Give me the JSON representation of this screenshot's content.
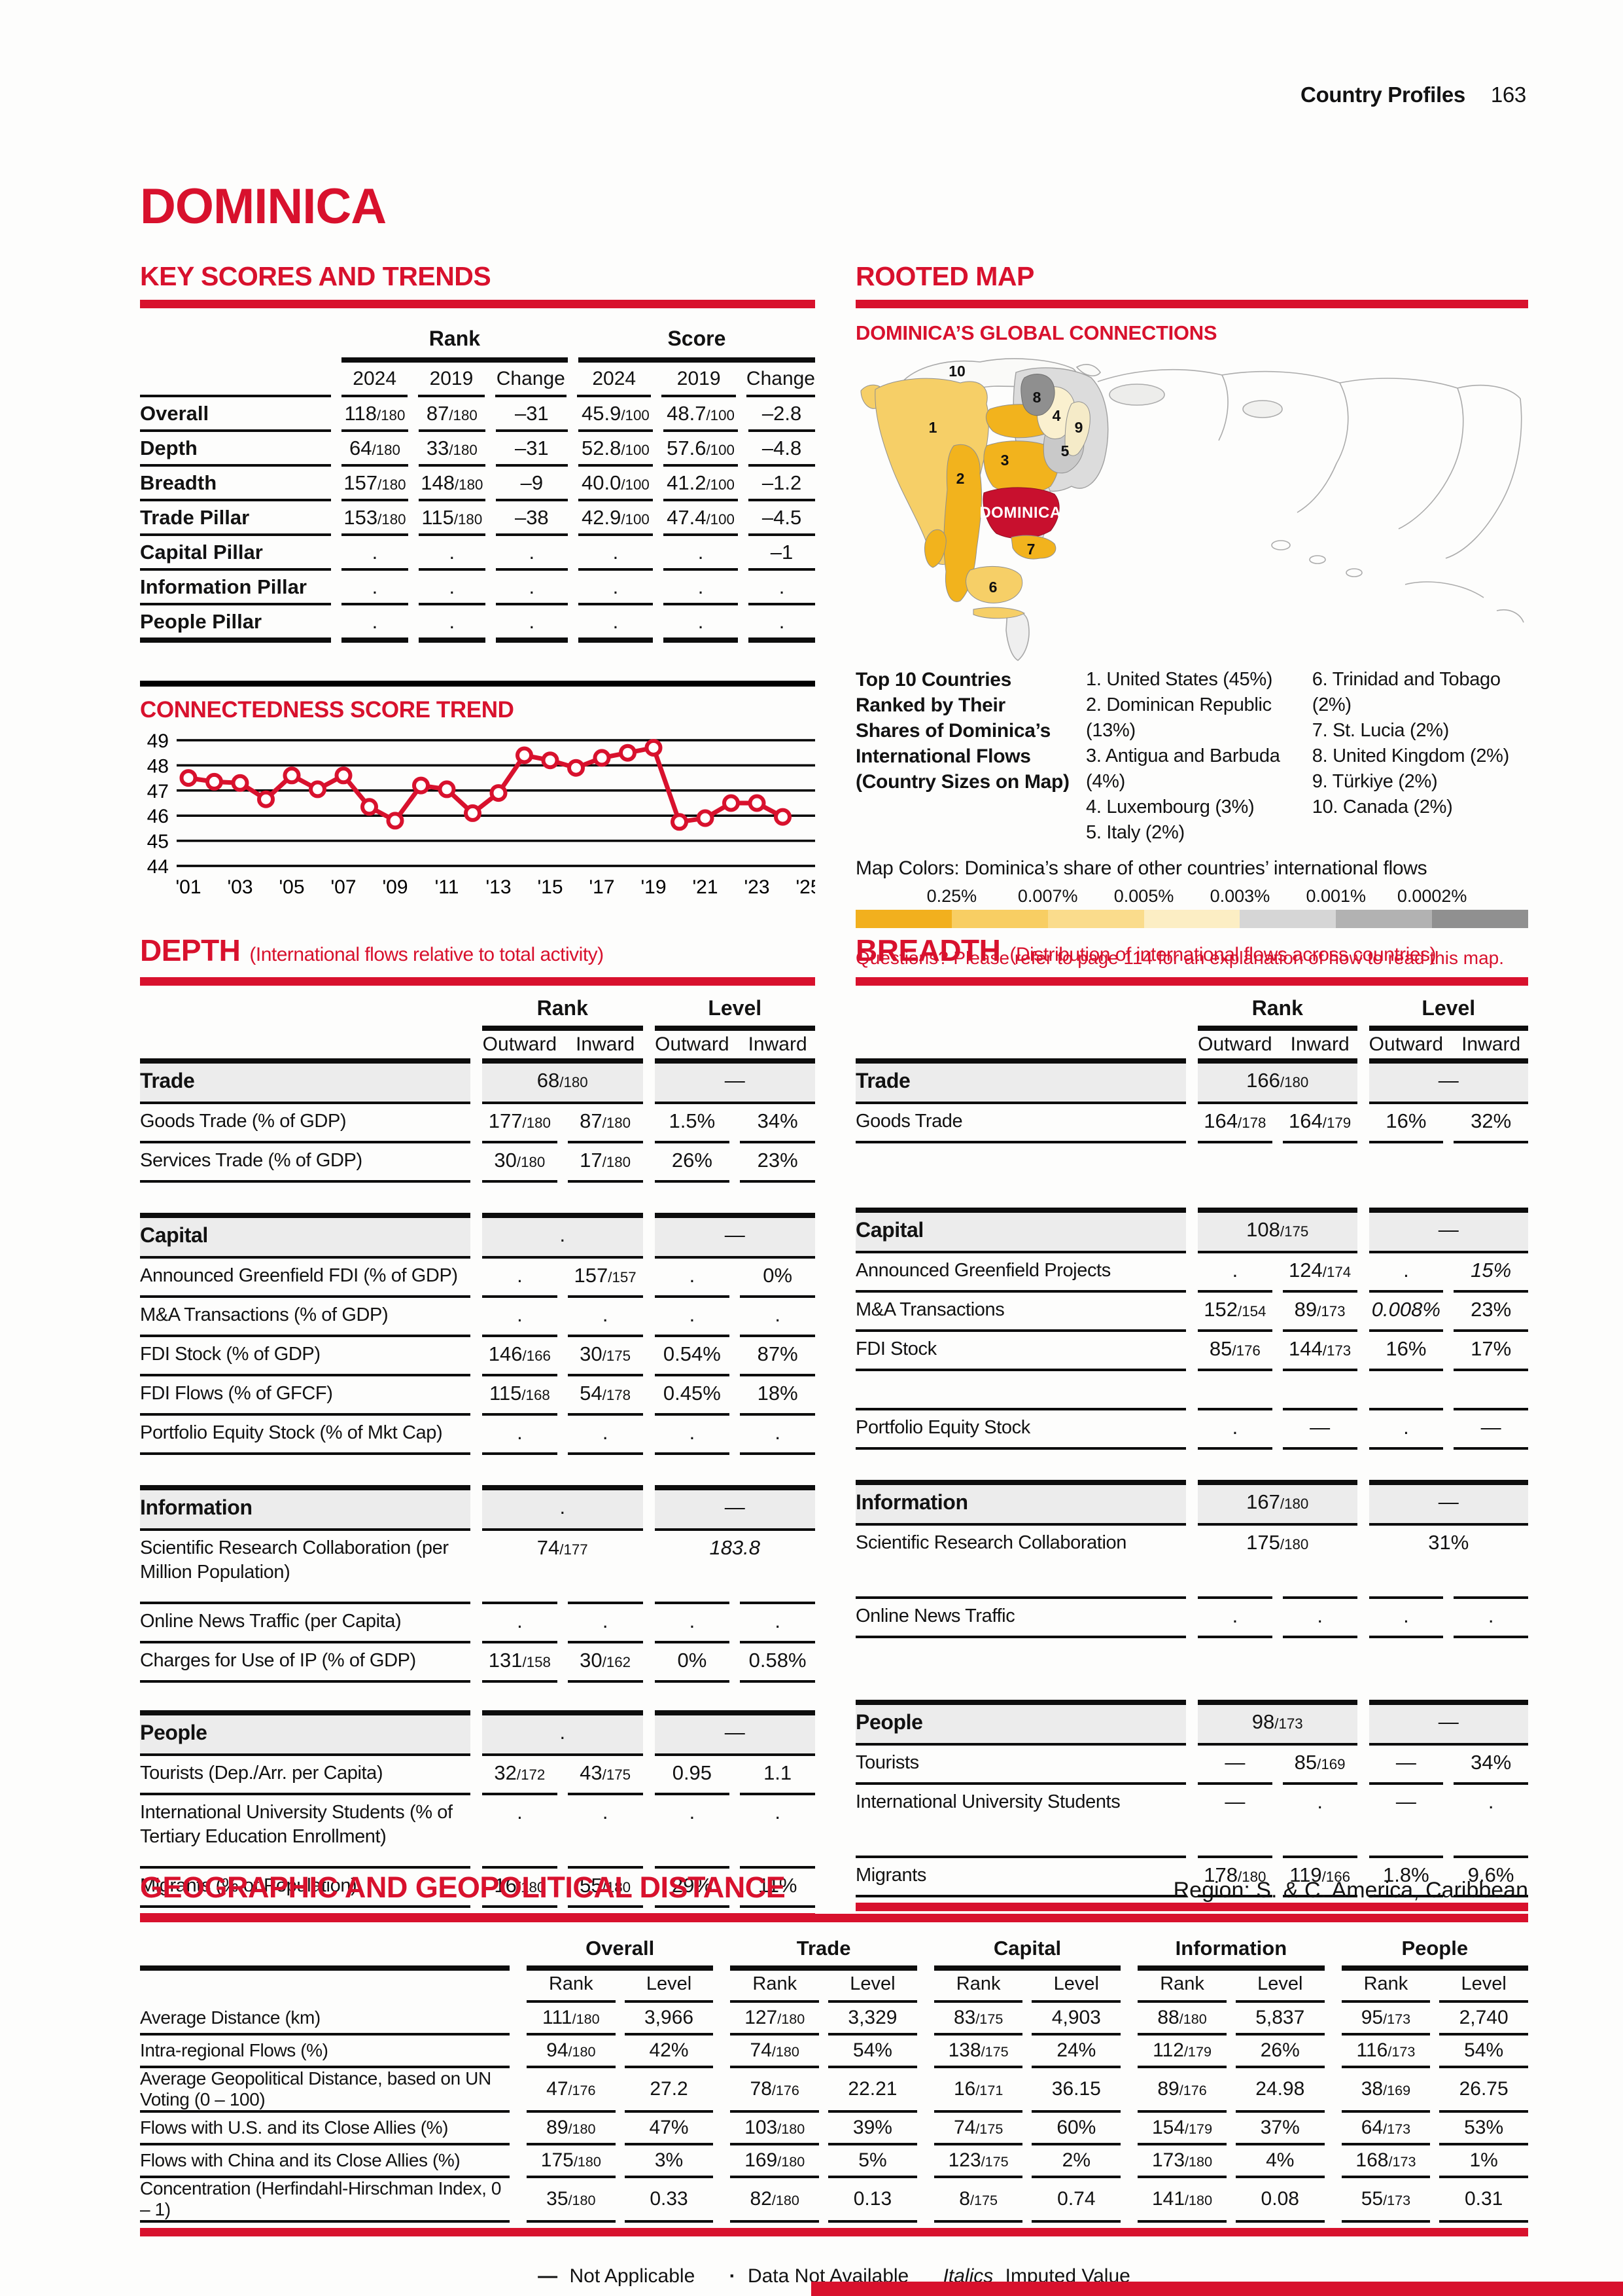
{
  "header": {
    "section": "Country Profiles",
    "page": "163"
  },
  "title": "DOMINICA",
  "key_scores": {
    "heading": "KEY SCORES AND TRENDS",
    "group_headers": [
      "Rank",
      "Score"
    ],
    "col_headers": [
      "2024",
      "2019",
      "Change"
    ],
    "rows": [
      {
        "label": "Overall",
        "values": [
          "118/180",
          "87/180",
          "–31",
          "45.9/100",
          "48.7/100",
          "–2.8"
        ]
      },
      {
        "label": "Depth",
        "values": [
          "64/180",
          "33/180",
          "–31",
          "52.8/100",
          "57.6/100",
          "–4.8"
        ]
      },
      {
        "label": "Breadth",
        "values": [
          "157/180",
          "148/180",
          "–9",
          "40.0/100",
          "41.2/100",
          "–1.2"
        ]
      },
      {
        "label": "Trade Pillar",
        "values": [
          "153/180",
          "115/180",
          "–38",
          "42.9/100",
          "47.4/100",
          "–4.5"
        ]
      },
      {
        "label": "Capital Pillar",
        "values": [
          ".",
          ".",
          ".",
          ".",
          ".",
          "–1"
        ]
      },
      {
        "label": "Information Pillar",
        "values": [
          ".",
          ".",
          ".",
          ".",
          ".",
          "."
        ]
      },
      {
        "label": "People Pillar",
        "values": [
          ".",
          ".",
          ".",
          ".",
          ".",
          "."
        ]
      }
    ]
  },
  "chart_data": {
    "type": "line",
    "title": "CONNECTEDNESS SCORE TREND",
    "x": [
      2001,
      2002,
      2003,
      2004,
      2005,
      2006,
      2007,
      2008,
      2009,
      2010,
      2011,
      2012,
      2013,
      2014,
      2015,
      2016,
      2017,
      2018,
      2019,
      2020,
      2021,
      2022,
      2023,
      2024
    ],
    "values": [
      47.5,
      47.35,
      47.3,
      46.65,
      47.6,
      47.05,
      47.6,
      46.35,
      45.8,
      47.2,
      47.05,
      46.1,
      46.9,
      48.4,
      48.2,
      47.9,
      48.3,
      48.5,
      48.7,
      45.75,
      45.9,
      46.5,
      46.5,
      45.95
    ],
    "xlim": [
      2001,
      2025
    ],
    "ylim": [
      44,
      49
    ],
    "yticks": [
      49,
      48,
      47,
      46,
      45,
      44
    ],
    "xtick_labels": [
      "'01",
      "'03",
      "'05",
      "'07",
      "'09",
      "'11",
      "'13",
      "'15",
      "'17",
      "'19",
      "'21",
      "'23",
      "'25"
    ],
    "line_color": "#D8112D",
    "grid": true,
    "legend_position": "none",
    "xlabel": "",
    "ylabel": ""
  },
  "rooted_map": {
    "heading": "ROOTED MAP",
    "subheading": "DOMINICA’S GLOBAL CONNECTIONS",
    "caption_lines": [
      "Top 10 Countries",
      "Ranked by Their",
      "Shares of Dominica’s",
      "International Flows",
      "(Country Sizes on Map)"
    ],
    "top10_col1": [
      "1. United States (45%)",
      "2. Dominican Republic (13%)",
      "3. Antigua and Barbuda (4%)",
      "4. Luxembourg (3%)",
      "5. Italy (2%)"
    ],
    "top10_col2": [
      "6. Trinidad and Tobago (2%)",
      "7. St. Lucia (2%)",
      "8. United Kingdom (2%)",
      "9. Türkiye (2%)",
      "10. Canada (2%)"
    ],
    "map_labels": {
      "n1": "1",
      "n2": "2",
      "n3": "3",
      "n4": "4",
      "n5": "5",
      "n6": "6",
      "n7": "7",
      "n8": "8",
      "n9": "9",
      "n10": "10",
      "dominica": "DOMINICA"
    },
    "colors_caption": "Map Colors: Dominica’s share of other countries’ international flows",
    "scale": {
      "labels": [
        "0.25%",
        "0.007%",
        "0.005%",
        "0.003%",
        "0.001%",
        "0.0002%"
      ],
      "colors": [
        "#F2B01E",
        "#F8CE63",
        "#FADC8C",
        "#FCEEC4",
        "#D6D6D6",
        "#B2B2B2",
        "#909090"
      ]
    },
    "questions": "Questions? Please refer to page 114 for an explanation of how to read this map."
  },
  "depth": {
    "heading": "DEPTH",
    "subheading": "(International flows relative to total activity)",
    "col_groups": [
      "Rank",
      "Level"
    ],
    "sub_headers": [
      "Outward",
      "Inward",
      "Outward",
      "Inward"
    ],
    "sections": [
      {
        "label": "Trade",
        "rank": "68/180",
        "level": "—",
        "rows": [
          {
            "label": "Goods Trade (% of GDP)",
            "cells": [
              "177/180",
              "87/180",
              "1.5%",
              "34%"
            ]
          },
          {
            "label": "Services Trade (% of GDP)",
            "cells": [
              "30/180",
              "17/180",
              "26%",
              "23%"
            ]
          }
        ]
      },
      {
        "label": "Capital",
        "rank": ".",
        "level": "—",
        "rows": [
          {
            "label": "Announced Greenfield FDI (% of GDP)",
            "cells": [
              ".",
              "157/157",
              ".",
              "0%"
            ]
          },
          {
            "label": "M&A Transactions (% of GDP)",
            "cells": [
              ".",
              ".",
              ".",
              "."
            ]
          },
          {
            "label": "FDI Stock (% of GDP)",
            "cells": [
              "146/166",
              "30/175",
              "0.54%",
              "87%"
            ]
          },
          {
            "label": "FDI Flows (% of GFCF)",
            "cells": [
              "115/168",
              "54/178",
              "0.45%",
              "18%"
            ]
          },
          {
            "label": "Portfolio Equity Stock (% of Mkt Cap)",
            "cells": [
              ".",
              ".",
              ".",
              "."
            ]
          }
        ]
      },
      {
        "label": "Information",
        "rank": ".",
        "level": "—",
        "rows": [
          {
            "label": "Scientific Research Collaboration (per Million Population)",
            "tall": true,
            "span_cells": [
              "74/177",
              "183.8"
            ],
            "italic": [
              false,
              true
            ]
          },
          {
            "label": "Online News Traffic (per Capita)",
            "cells": [
              ".",
              ".",
              ".",
              "."
            ]
          },
          {
            "label": "Charges for Use of IP (% of GDP)",
            "cells": [
              "131/158",
              "30/162",
              "0%",
              "0.58%"
            ]
          }
        ]
      },
      {
        "label": "People",
        "rank": ".",
        "level": "—",
        "rows": [
          {
            "label": "Tourists (Dep./Arr. per Capita)",
            "cells": [
              "32/172",
              "43/175",
              "0.95",
              "1.1"
            ]
          },
          {
            "label": "International University Students (% of Tertiary Education Enrollment)",
            "tall": true,
            "cells": [
              ".",
              ".",
              ".",
              "."
            ]
          },
          {
            "label": "Migrants (% of Population)",
            "cells": [
              "16/180",
              "55/180",
              "29%",
              "11%"
            ]
          }
        ]
      }
    ]
  },
  "breadth": {
    "heading": "BREADTH",
    "subheading": "(Distribution of international flows across countries)",
    "col_groups": [
      "Rank",
      "Level"
    ],
    "sub_headers": [
      "Outward",
      "Inward",
      "Outward",
      "Inward"
    ],
    "sections": [
      {
        "label": "Trade",
        "rank": "166/180",
        "level": "—",
        "rows": [
          {
            "label": "Goods Trade",
            "cells": [
              "164/178",
              "164/179",
              "16%",
              "32%"
            ]
          }
        ]
      },
      {
        "label": "Capital",
        "rank": "108/175",
        "level": "—",
        "rows": [
          {
            "label": "Announced Greenfield Projects",
            "cells": [
              ".",
              "124/174",
              ".",
              "15%"
            ],
            "italic": [
              false,
              false,
              false,
              true
            ]
          },
          {
            "label": "M&A Transactions",
            "cells": [
              "152/154",
              "89/173",
              "0.008%",
              "23%"
            ],
            "italic": [
              false,
              false,
              true,
              false
            ]
          },
          {
            "label": "FDI Stock",
            "cells": [
              "85/176",
              "144/173",
              "16%",
              "17%"
            ]
          },
          {
            "label": "",
            "cells": [
              "",
              "",
              "",
              ""
            ]
          },
          {
            "label": "Portfolio Equity Stock",
            "cells": [
              ".",
              "—",
              ".",
              "—"
            ]
          }
        ]
      },
      {
        "label": "Information",
        "rank": "167/180",
        "level": "—",
        "rows": [
          {
            "label": "Scientific Research Collaboration",
            "tall": true,
            "span_cells": [
              "175/180",
              "31%"
            ],
            "italic": [
              false,
              false
            ]
          },
          {
            "label": "Online News Traffic",
            "cells": [
              ".",
              ".",
              ".",
              "."
            ]
          }
        ]
      },
      {
        "label": "People",
        "rank": "98/173",
        "level": "—",
        "rows": [
          {
            "label": "Tourists",
            "cells": [
              "—",
              "85/169",
              "—",
              "34%"
            ]
          },
          {
            "label": "International University Students",
            "tall": true,
            "cells": [
              "—",
              ".",
              "—",
              "."
            ]
          },
          {
            "label": "Migrants",
            "cells": [
              "178/180",
              "119/166",
              "1.8%",
              "9.6%"
            ]
          }
        ]
      }
    ]
  },
  "geo": {
    "heading": "GEOGRAPHIC AND GEOPOLITICAL DISTANCE",
    "region": "Region: S. & C. America, Caribbean",
    "groups": [
      "Overall",
      "Trade",
      "Capital",
      "Information",
      "People"
    ],
    "sub_headers": [
      "Rank",
      "Level"
    ],
    "rows": [
      {
        "label": "Average Distance (km)",
        "values": [
          [
            "111/180",
            "3,966"
          ],
          [
            "127/180",
            "3,329"
          ],
          [
            "83/175",
            "4,903"
          ],
          [
            "88/180",
            "5,837"
          ],
          [
            "95/173",
            "2,740"
          ]
        ]
      },
      {
        "label": "Intra-regional Flows (%)",
        "values": [
          [
            "94/180",
            "42%"
          ],
          [
            "74/180",
            "54%"
          ],
          [
            "138/175",
            "24%"
          ],
          [
            "112/179",
            "26%"
          ],
          [
            "116/173",
            "54%"
          ]
        ]
      },
      {
        "label": "Average Geopolitical Distance, based on UN Voting (0 – 100)",
        "values": [
          [
            "47/176",
            "27.2"
          ],
          [
            "78/176",
            "22.21"
          ],
          [
            "16/171",
            "36.15"
          ],
          [
            "89/176",
            "24.98"
          ],
          [
            "38/169",
            "26.75"
          ]
        ]
      },
      {
        "label": "Flows with U.S. and its Close Allies (%)",
        "values": [
          [
            "89/180",
            "47%"
          ],
          [
            "103/180",
            "39%"
          ],
          [
            "74/175",
            "60%"
          ],
          [
            "154/179",
            "37%"
          ],
          [
            "64/173",
            "53%"
          ]
        ]
      },
      {
        "label": "Flows with China and its Close Allies (%)",
        "values": [
          [
            "175/180",
            "3%"
          ],
          [
            "169/180",
            "5%"
          ],
          [
            "123/175",
            "2%"
          ],
          [
            "173/180",
            "4%"
          ],
          [
            "168/173",
            "1%"
          ]
        ]
      },
      {
        "label": "Concentration (Herfindahl-Hirschman Index, 0 – 1)",
        "values": [
          [
            "35/180",
            "0.33"
          ],
          [
            "82/180",
            "0.13"
          ],
          [
            "8/175",
            "0.74"
          ],
          [
            "141/180",
            "0.08"
          ],
          [
            "55/173",
            "0.31"
          ]
        ]
      }
    ]
  },
  "footer": {
    "na_symbol": "—",
    "na_label": "Not Applicable",
    "dna_symbol": "·",
    "dna_label": "Data Not Available",
    "imputed_symbol": "Italics",
    "imputed_label": "Imputed Value"
  }
}
